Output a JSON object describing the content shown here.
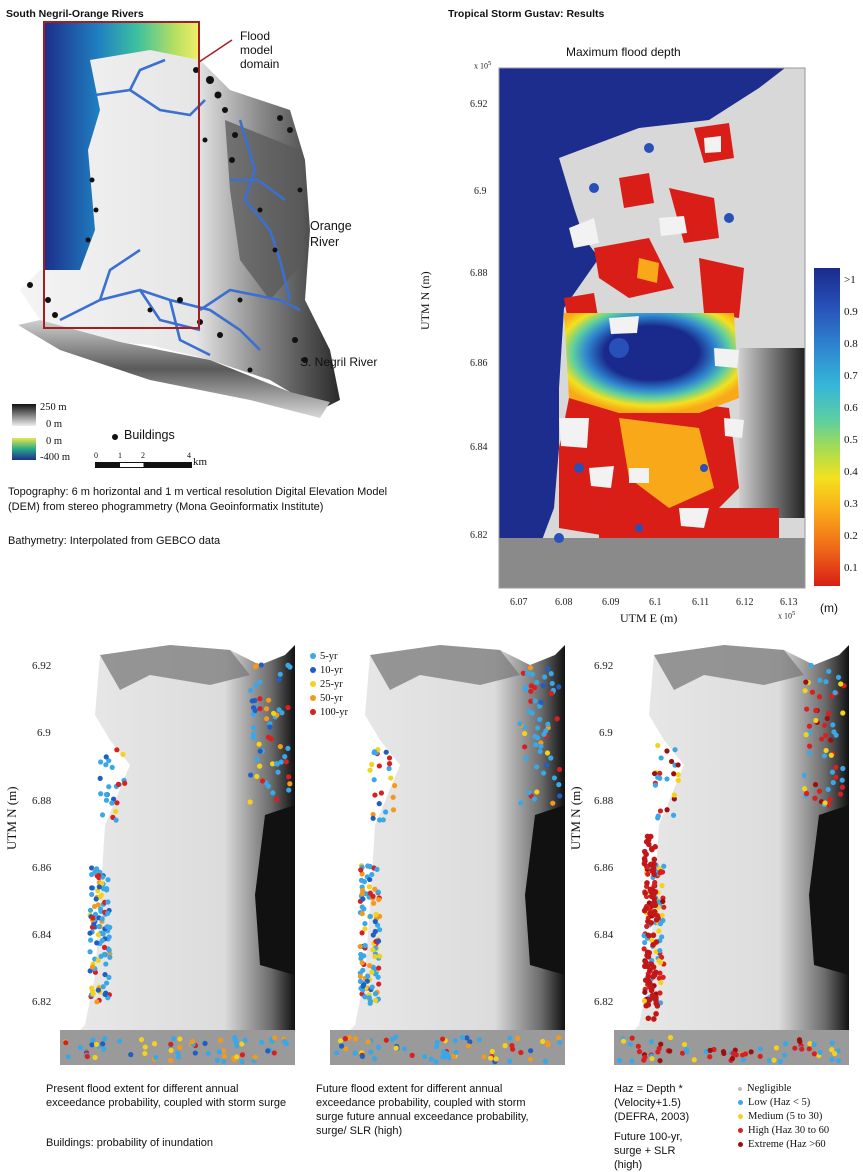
{
  "left_panel": {
    "title": "South Negril-Orange Rivers",
    "domain_label": [
      "Flood",
      "model",
      "domain"
    ],
    "orange_label": [
      "Orange",
      "River"
    ],
    "negril_label": "S. Negril River",
    "dem_legend": {
      "top": "250 m",
      "mid1": "0 m",
      "mid2": "0 m",
      "bottom": "-400 m"
    },
    "buildings_label": "Buildings",
    "scalebar": {
      "ticks": [
        "0",
        "1",
        "2",
        "4"
      ],
      "unit": "km"
    },
    "topo_caption": "Topography: 6 m horizontal and 1 m vertical resolution  Digital Elevation Model (DEM) from stereo phogrammetry (Mona Geoinformatix Institute)",
    "bathy_caption": "Bathymetry: Interpolated from GEBCO data"
  },
  "right_panel": {
    "title": "Tropical Storm Gustav: Results",
    "subtitle": "Maximum flood depth",
    "y_exp": "x 10",
    "y_exp_pow": "5",
    "yticks": [
      "6.92",
      "6.9",
      "6.88",
      "6.86",
      "6.84",
      "6.82"
    ],
    "xticks": [
      "6.07",
      "6.08",
      "6.09",
      "6.1",
      "6.11",
      "6.12",
      "6.13"
    ],
    "ylabel": "UTM N (m)",
    "xlabel": "UTM E (m)",
    "x_exp": "x 10",
    "x_exp_pow": "5",
    "colorbar": {
      "labels": [
        ">1",
        "0.9",
        "0.8",
        "0.7",
        "0.6",
        "0.5",
        "0.4",
        "0.3",
        "0.2",
        "0.1"
      ],
      "unit": "(m)",
      "colors": [
        "#1a2a8c",
        "#2850b8",
        "#2f86d0",
        "#35b6d8",
        "#5ecfa0",
        "#a8dc50",
        "#f3e11e",
        "#f9a81a",
        "#f06a18",
        "#d81e16"
      ]
    }
  },
  "bottom_panels": {
    "yticks": [
      "6.92",
      "6.9",
      "6.88",
      "6.86",
      "6.84",
      "6.82"
    ],
    "ylabel": "UTM N (m)",
    "prob_legend": [
      {
        "label": "5-yr",
        "color": "#3aa7e6"
      },
      {
        "label": "10-yr",
        "color": "#1f5fc4"
      },
      {
        "label": "25-yr",
        "color": "#f4d21c"
      },
      {
        "label": "50-yr",
        "color": "#f39a1c"
      },
      {
        "label": "100-yr",
        "color": "#d91f1f"
      }
    ],
    "caption1": "Present flood extent for different annual exceedance probability, coupled with storm surge",
    "caption2": "Future flood extent for different annual exceedance probability, coupled with storm surge future annual exceedance probability, surge/ SLR (high)",
    "buildings_caption": "Buildings: probability of inundation",
    "haz_formula": "Haz = Depth * (Velocity+1.5) (DEFRA, 2003)",
    "haz_future": "Future 100-yr, surge + SLR (high)",
    "haz_legend": [
      {
        "label": "Negligible",
        "color": "#bbbbbb"
      },
      {
        "label": "Low (Haz < 5)",
        "color": "#3aa7e6"
      },
      {
        "label": "Medium (5 to 30)",
        "color": "#f4d21c"
      },
      {
        "label": "High (Haz 30 to 60",
        "color": "#d91f1f"
      },
      {
        "label": "Extreme (Haz >60",
        "color": "#9a1010"
      }
    ]
  }
}
